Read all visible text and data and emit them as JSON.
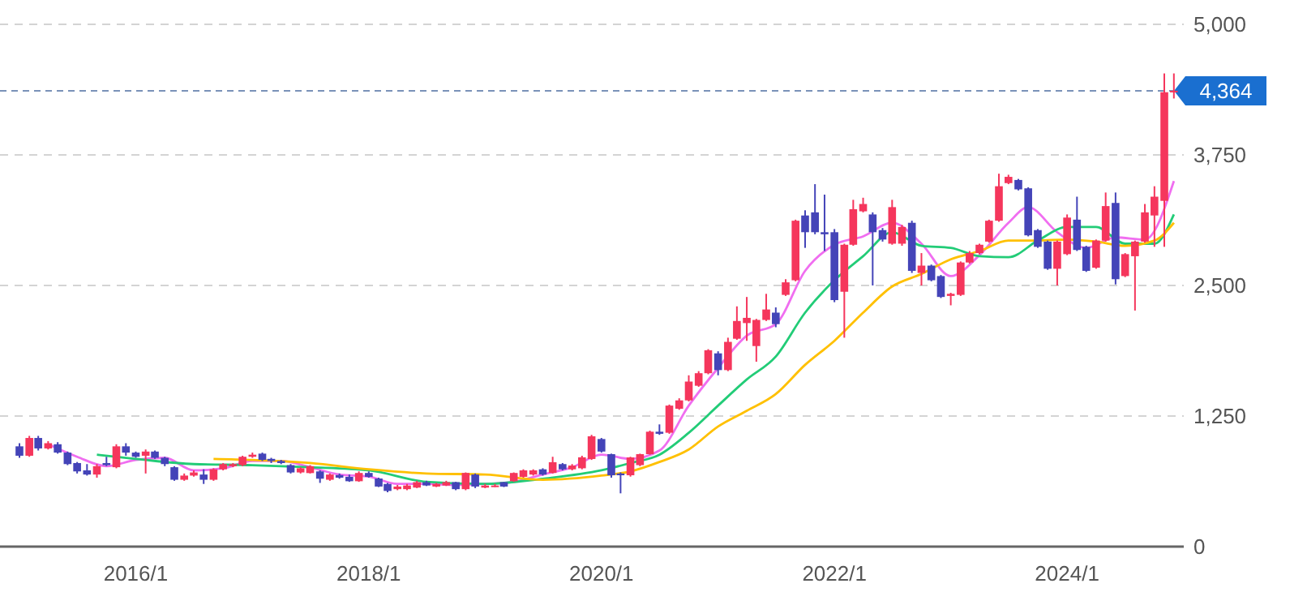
{
  "chart_data": {
    "type": "candlestick",
    "x": [
      "2015-01",
      "2015-02",
      "2015-03",
      "2015-04",
      "2015-05",
      "2015-06",
      "2015-07",
      "2015-08",
      "2015-09",
      "2015-10",
      "2015-11",
      "2015-12",
      "2016-01",
      "2016-02",
      "2016-03",
      "2016-04",
      "2016-05",
      "2016-06",
      "2016-07",
      "2016-08",
      "2016-09",
      "2016-10",
      "2016-11",
      "2016-12",
      "2017-01",
      "2017-02",
      "2017-03",
      "2017-04",
      "2017-05",
      "2017-06",
      "2017-07",
      "2017-08",
      "2017-09",
      "2017-10",
      "2017-11",
      "2017-12",
      "2018-01",
      "2018-02",
      "2018-03",
      "2018-04",
      "2018-05",
      "2018-06",
      "2018-07",
      "2018-08",
      "2018-09",
      "2018-10",
      "2018-11",
      "2018-12",
      "2019-01",
      "2019-02",
      "2019-03",
      "2019-04",
      "2019-05",
      "2019-06",
      "2019-07",
      "2019-08",
      "2019-09",
      "2019-10",
      "2019-11",
      "2019-12",
      "2020-01",
      "2020-02",
      "2020-03",
      "2020-04",
      "2020-05",
      "2020-06",
      "2020-07",
      "2020-08",
      "2020-09",
      "2020-10",
      "2020-11",
      "2020-12",
      "2021-01",
      "2021-02",
      "2021-03",
      "2021-04",
      "2021-05",
      "2021-06",
      "2021-07",
      "2021-08",
      "2021-09",
      "2021-10",
      "2021-11",
      "2021-12",
      "2022-01",
      "2022-02",
      "2022-03",
      "2022-04",
      "2022-05",
      "2022-06",
      "2022-07",
      "2022-08",
      "2022-09",
      "2022-10",
      "2022-11",
      "2022-12",
      "2023-01",
      "2023-02",
      "2023-03",
      "2023-04",
      "2023-05",
      "2023-06",
      "2023-07",
      "2023-08",
      "2023-09",
      "2023-10",
      "2023-11",
      "2023-12",
      "2024-01",
      "2024-02",
      "2024-03",
      "2024-04",
      "2024-05",
      "2024-06",
      "2024-07",
      "2024-08",
      "2024-09",
      "2024-10",
      "2024-11",
      "2024-12"
    ],
    "ohlc": [
      [
        960,
        990,
        850,
        870
      ],
      [
        870,
        1060,
        860,
        1040
      ],
      [
        1040,
        1060,
        920,
        940
      ],
      [
        940,
        1010,
        930,
        990
      ],
      [
        980,
        1000,
        890,
        900
      ],
      [
        900,
        910,
        780,
        790
      ],
      [
        800,
        810,
        700,
        720
      ],
      [
        730,
        790,
        680,
        690
      ],
      [
        690,
        790,
        660,
        770
      ],
      [
        800,
        860,
        770,
        780
      ],
      [
        760,
        980,
        750,
        960
      ],
      [
        960,
        990,
        870,
        900
      ],
      [
        900,
        910,
        850,
        860
      ],
      [
        870,
        930,
        700,
        910
      ],
      [
        910,
        920,
        840,
        850
      ],
      [
        850,
        860,
        770,
        790
      ],
      [
        760,
        770,
        630,
        640
      ],
      [
        640,
        700,
        630,
        680
      ],
      [
        680,
        730,
        670,
        710
      ],
      [
        690,
        740,
        600,
        640
      ],
      [
        640,
        750,
        630,
        740
      ],
      [
        740,
        800,
        730,
        790
      ],
      [
        770,
        800,
        760,
        790
      ],
      [
        780,
        870,
        770,
        860
      ],
      [
        860,
        900,
        850,
        880
      ],
      [
        890,
        900,
        820,
        830
      ],
      [
        840,
        850,
        800,
        820
      ],
      [
        820,
        830,
        790,
        800
      ],
      [
        780,
        790,
        700,
        710
      ],
      [
        710,
        760,
        700,
        750
      ],
      [
        704,
        780,
        700,
        770
      ],
      [
        720,
        730,
        610,
        650
      ],
      [
        640,
        700,
        630,
        690
      ],
      [
        685,
        700,
        650,
        660
      ],
      [
        668,
        690,
        620,
        626
      ],
      [
        626,
        720,
        620,
        705
      ],
      [
        705,
        720,
        660,
        668
      ],
      [
        652,
        660,
        570,
        575
      ],
      [
        600,
        610,
        520,
        533
      ],
      [
        550,
        590,
        540,
        575
      ],
      [
        550,
        600,
        540,
        585
      ],
      [
        565,
        630,
        560,
        617
      ],
      [
        617,
        630,
        580,
        585
      ],
      [
        575,
        610,
        570,
        600
      ],
      [
        585,
        630,
        580,
        617
      ],
      [
        617,
        620,
        540,
        550
      ],
      [
        550,
        710,
        540,
        705
      ],
      [
        690,
        700,
        560,
        575
      ],
      [
        565,
        600,
        560,
        585
      ],
      [
        575,
        600,
        570,
        585
      ],
      [
        617,
        620,
        570,
        575
      ],
      [
        626,
        710,
        620,
        705
      ],
      [
        668,
        740,
        660,
        730
      ],
      [
        690,
        740,
        680,
        730
      ],
      [
        740,
        750,
        680,
        690
      ],
      [
        705,
        860,
        700,
        808
      ],
      [
        790,
        800,
        730,
        740
      ],
      [
        740,
        790,
        730,
        776
      ],
      [
        750,
        870,
        740,
        855
      ],
      [
        839,
        1070,
        830,
        1056
      ],
      [
        1030,
        1040,
        900,
        910
      ],
      [
        885,
        890,
        660,
        683
      ],
      [
        700,
        710,
        510,
        683
      ],
      [
        683,
        860,
        670,
        854
      ],
      [
        780,
        890,
        770,
        885
      ],
      [
        885,
        1110,
        880,
        1100
      ],
      [
        1100,
        1170,
        1070,
        1080
      ],
      [
        1090,
        1360,
        1080,
        1350
      ],
      [
        1320,
        1420,
        1310,
        1400
      ],
      [
        1400,
        1640,
        1390,
        1580
      ],
      [
        1540,
        1680,
        1530,
        1660
      ],
      [
        1660,
        1890,
        1650,
        1880
      ],
      [
        1850,
        1870,
        1640,
        1690
      ],
      [
        1690,
        2000,
        1680,
        1960
      ],
      [
        1990,
        2300,
        1980,
        2160
      ],
      [
        2140,
        2390,
        1970,
        2190
      ],
      [
        1920,
        2180,
        1770,
        2170
      ],
      [
        2170,
        2420,
        2160,
        2270
      ],
      [
        2240,
        2290,
        2100,
        2130
      ],
      [
        2410,
        2560,
        2400,
        2530
      ],
      [
        2550,
        3130,
        2540,
        3120
      ],
      [
        3170,
        3220,
        2860,
        3010
      ],
      [
        3200,
        3470,
        2990,
        3010
      ],
      [
        3010,
        3370,
        2830,
        2990
      ],
      [
        3010,
        3040,
        2340,
        2360
      ],
      [
        2440,
        2900,
        2000,
        2890
      ],
      [
        2890,
        3320,
        2880,
        3230
      ],
      [
        3210,
        3340,
        3200,
        3280
      ],
      [
        3180,
        3200,
        2500,
        3010
      ],
      [
        3030,
        3050,
        2920,
        2940
      ],
      [
        2900,
        3320,
        2890,
        3250
      ],
      [
        2900,
        3080,
        2880,
        3060
      ],
      [
        3100,
        3120,
        2620,
        2640
      ],
      [
        2620,
        2810,
        2500,
        2690
      ],
      [
        2690,
        2700,
        2540,
        2550
      ],
      [
        2590,
        2600,
        2380,
        2390
      ],
      [
        2400,
        2430,
        2310,
        2420
      ],
      [
        2410,
        2730,
        2400,
        2720
      ],
      [
        2720,
        2830,
        2710,
        2810
      ],
      [
        2810,
        2900,
        2800,
        2890
      ],
      [
        2920,
        3130,
        2910,
        3120
      ],
      [
        3120,
        3570,
        3110,
        3450
      ],
      [
        3480,
        3560,
        3470,
        3540
      ],
      [
        3510,
        3520,
        3410,
        3420
      ],
      [
        3430,
        3440,
        2970,
        2980
      ],
      [
        3030,
        3040,
        2860,
        2870
      ],
      [
        2920,
        2930,
        2650,
        2660
      ],
      [
        2660,
        2930,
        2500,
        2920
      ],
      [
        2800,
        3180,
        2790,
        3150
      ],
      [
        3130,
        3350,
        2830,
        2840
      ],
      [
        2870,
        2880,
        2630,
        2640
      ],
      [
        2670,
        2940,
        2660,
        2930
      ],
      [
        2930,
        3390,
        2920,
        3260
      ],
      [
        3290,
        3390,
        2510,
        2560
      ],
      [
        2590,
        2810,
        2580,
        2800
      ],
      [
        2780,
        2930,
        2260,
        2920
      ],
      [
        2920,
        3280,
        2910,
        3200
      ],
      [
        3170,
        3450,
        2870,
        3350
      ],
      [
        3310,
        4530,
        2870,
        4350
      ],
      [
        4350,
        4530,
        4290,
        4364
      ]
    ],
    "colors": [
      "#4444b8",
      "#f5365c",
      "#4444b8",
      "#f5365c",
      "#4444b8",
      "#4444b8",
      "#4444b8",
      "#4444b8",
      "#f5365c",
      "#4444b8",
      "#f5365c",
      "#4444b8",
      "#4444b8",
      "#f5365c",
      "#4444b8",
      "#4444b8",
      "#4444b8",
      "#f5365c",
      "#f5365c",
      "#4444b8",
      "#f5365c",
      "#f5365c",
      "#f5365c",
      "#f5365c",
      "#f5365c",
      "#4444b8",
      "#4444b8",
      "#4444b8",
      "#4444b8",
      "#f5365c",
      "#f5365c",
      "#4444b8",
      "#f5365c",
      "#4444b8",
      "#4444b8",
      "#f5365c",
      "#4444b8",
      "#4444b8",
      "#4444b8",
      "#f5365c",
      "#f5365c",
      "#f5365c",
      "#4444b8",
      "#f5365c",
      "#f5365c",
      "#4444b8",
      "#f5365c",
      "#4444b8",
      "#f5365c",
      "#f5365c",
      "#4444b8",
      "#f5365c",
      "#f5365c",
      "#f5365c",
      "#4444b8",
      "#f5365c",
      "#4444b8",
      "#f5365c",
      "#f5365c",
      "#f5365c",
      "#4444b8",
      "#4444b8",
      "#4444b8",
      "#f5365c",
      "#f5365c",
      "#f5365c",
      "#4444b8",
      "#f5365c",
      "#f5365c",
      "#f5365c",
      "#f5365c",
      "#f5365c",
      "#4444b8",
      "#f5365c",
      "#f5365c",
      "#f5365c",
      "#f5365c",
      "#f5365c",
      "#4444b8",
      "#f5365c",
      "#f5365c",
      "#4444b8",
      "#4444b8",
      "#4444b8",
      "#4444b8",
      "#f5365c",
      "#f5365c",
      "#f5365c",
      "#4444b8",
      "#4444b8",
      "#f5365c",
      "#f5365c",
      "#4444b8",
      "#f5365c",
      "#4444b8",
      "#4444b8",
      "#f5365c",
      "#f5365c",
      "#f5365c",
      "#f5365c",
      "#f5365c",
      "#f5365c",
      "#f5365c",
      "#4444b8",
      "#4444b8",
      "#4444b8",
      "#4444b8",
      "#f5365c",
      "#f5365c",
      "#4444b8",
      "#4444b8",
      "#f5365c",
      "#f5365c",
      "#4444b8",
      "#f5365c",
      "#f5365c",
      "#f5365c",
      "#f5365c",
      "#f5365c",
      "#f5365c"
    ],
    "series": [
      {
        "type": "line",
        "color": "#f06ef0",
        "x": [
          "2015-04",
          "2015-07",
          "2015-10",
          "2016-01",
          "2016-04",
          "2016-07",
          "2016-10",
          "2017-01",
          "2017-04",
          "2017-07",
          "2017-10",
          "2018-01",
          "2018-04",
          "2018-07",
          "2018-10",
          "2019-01",
          "2019-04",
          "2019-07",
          "2019-10",
          "2020-01",
          "2020-04",
          "2020-07",
          "2020-10",
          "2021-01",
          "2021-04",
          "2021-07",
          "2021-10",
          "2022-01",
          "2022-04",
          "2022-07",
          "2022-10",
          "2023-01",
          "2023-04",
          "2023-07",
          "2023-09",
          "2023-12",
          "2024-03",
          "2024-06",
          "2024-09",
          "2024-12"
        ],
        "values": [
          980,
          860,
          770,
          830,
          850,
          730,
          750,
          820,
          820,
          760,
          690,
          670,
          600,
          600,
          590,
          600,
          620,
          690,
          760,
          880,
          840,
          920,
          1350,
          1710,
          2020,
          2130,
          2640,
          2890,
          2970,
          3100,
          2900,
          2590,
          2790,
          3100,
          3250,
          3010,
          2860,
          2960,
          2940,
          3500
        ]
      },
      {
        "type": "line",
        "color": "#22cc77",
        "x": [
          "2015-09",
          "2016-01",
          "2016-07",
          "2017-01",
          "2017-07",
          "2018-01",
          "2018-07",
          "2019-01",
          "2019-07",
          "2020-01",
          "2020-04",
          "2020-07",
          "2020-10",
          "2021-01",
          "2021-04",
          "2021-07",
          "2021-10",
          "2022-01",
          "2022-04",
          "2022-07",
          "2022-10",
          "2023-01",
          "2023-04",
          "2023-07",
          "2023-10",
          "2024-01",
          "2024-04",
          "2024-07",
          "2024-10",
          "2024-12"
        ],
        "values": [
          880,
          840,
          790,
          780,
          760,
          730,
          620,
          600,
          650,
          730,
          800,
          880,
          1090,
          1350,
          1600,
          1820,
          2240,
          2550,
          2780,
          3010,
          2880,
          2860,
          2780,
          2770,
          2930,
          3060,
          3060,
          2900,
          2900,
          3180
        ]
      },
      {
        "type": "line",
        "color": "#ffc000",
        "x": [
          "2016-09",
          "2017-01",
          "2017-07",
          "2018-01",
          "2018-07",
          "2019-01",
          "2019-07",
          "2020-01",
          "2020-04",
          "2020-07",
          "2020-10",
          "2021-01",
          "2021-04",
          "2021-07",
          "2021-10",
          "2022-01",
          "2022-04",
          "2022-07",
          "2022-10",
          "2023-01",
          "2023-04",
          "2023-07",
          "2023-10",
          "2024-01",
          "2024-04",
          "2024-07",
          "2024-10",
          "2024-12"
        ],
        "values": [
          840,
          830,
          800,
          740,
          700,
          690,
          640,
          680,
          720,
          810,
          930,
          1150,
          1300,
          1460,
          1740,
          1970,
          2240,
          2490,
          2610,
          2750,
          2830,
          2930,
          2930,
          2940,
          2920,
          2880,
          2930,
          3100
        ]
      }
    ],
    "xlim": [
      "2014-11",
      "2025-01"
    ],
    "xticks": [
      {
        "value": "2016-01",
        "label": "2016/1"
      },
      {
        "value": "2018-01",
        "label": "2018/1"
      },
      {
        "value": "2020-01",
        "label": "2020/1"
      },
      {
        "value": "2022-01",
        "label": "2022/1"
      },
      {
        "value": "2024-01",
        "label": "2024/1"
      }
    ],
    "ylim": [
      0,
      5000
    ],
    "yticks": [
      0,
      {
        "value": 1250,
        "label": "1,250"
      },
      {
        "value": 2500,
        "label": "2,500"
      },
      {
        "value": 3750,
        "label": "3,750"
      },
      {
        "value": 5000,
        "label": "5,000"
      }
    ],
    "grid": "y",
    "ref_lines": [
      {
        "axis": "y",
        "value": 4364,
        "label": "4,364",
        "color": "#7a92b8",
        "line_style": "dashed"
      }
    ]
  }
}
